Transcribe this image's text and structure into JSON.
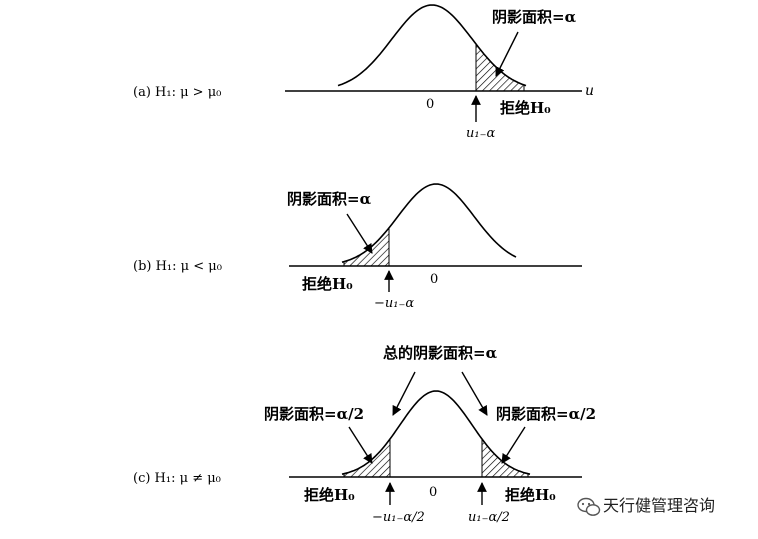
{
  "panels": [
    {
      "label": "(a)  H₁: μ > μ₀",
      "shade_label": "阴影面积=α",
      "reject_label": "拒绝H₀",
      "right_crit": "u₁₋α",
      "axis_var": "u",
      "zero": "0"
    },
    {
      "label": "(b)  H₁: μ < μ₀",
      "shade_label": "阴影面积=α",
      "reject_label": "拒绝H₀",
      "left_crit": "−u₁₋α",
      "zero": "0"
    },
    {
      "label": "(c)  H₁: μ ≠ μ₀",
      "total_label": "总的阴影面积=α",
      "left_shade_label": "阴影面积=α/2",
      "right_shade_label": "阴影面积=α/2",
      "left_reject_label": "拒绝H₀",
      "right_reject_label": "拒绝H₀",
      "left_crit": "−u₁₋α/2",
      "right_crit": "u₁₋α/2",
      "zero": "0"
    }
  ],
  "watermark": {
    "icon": "wechat-icon",
    "text": "天行健管理咨询"
  }
}
